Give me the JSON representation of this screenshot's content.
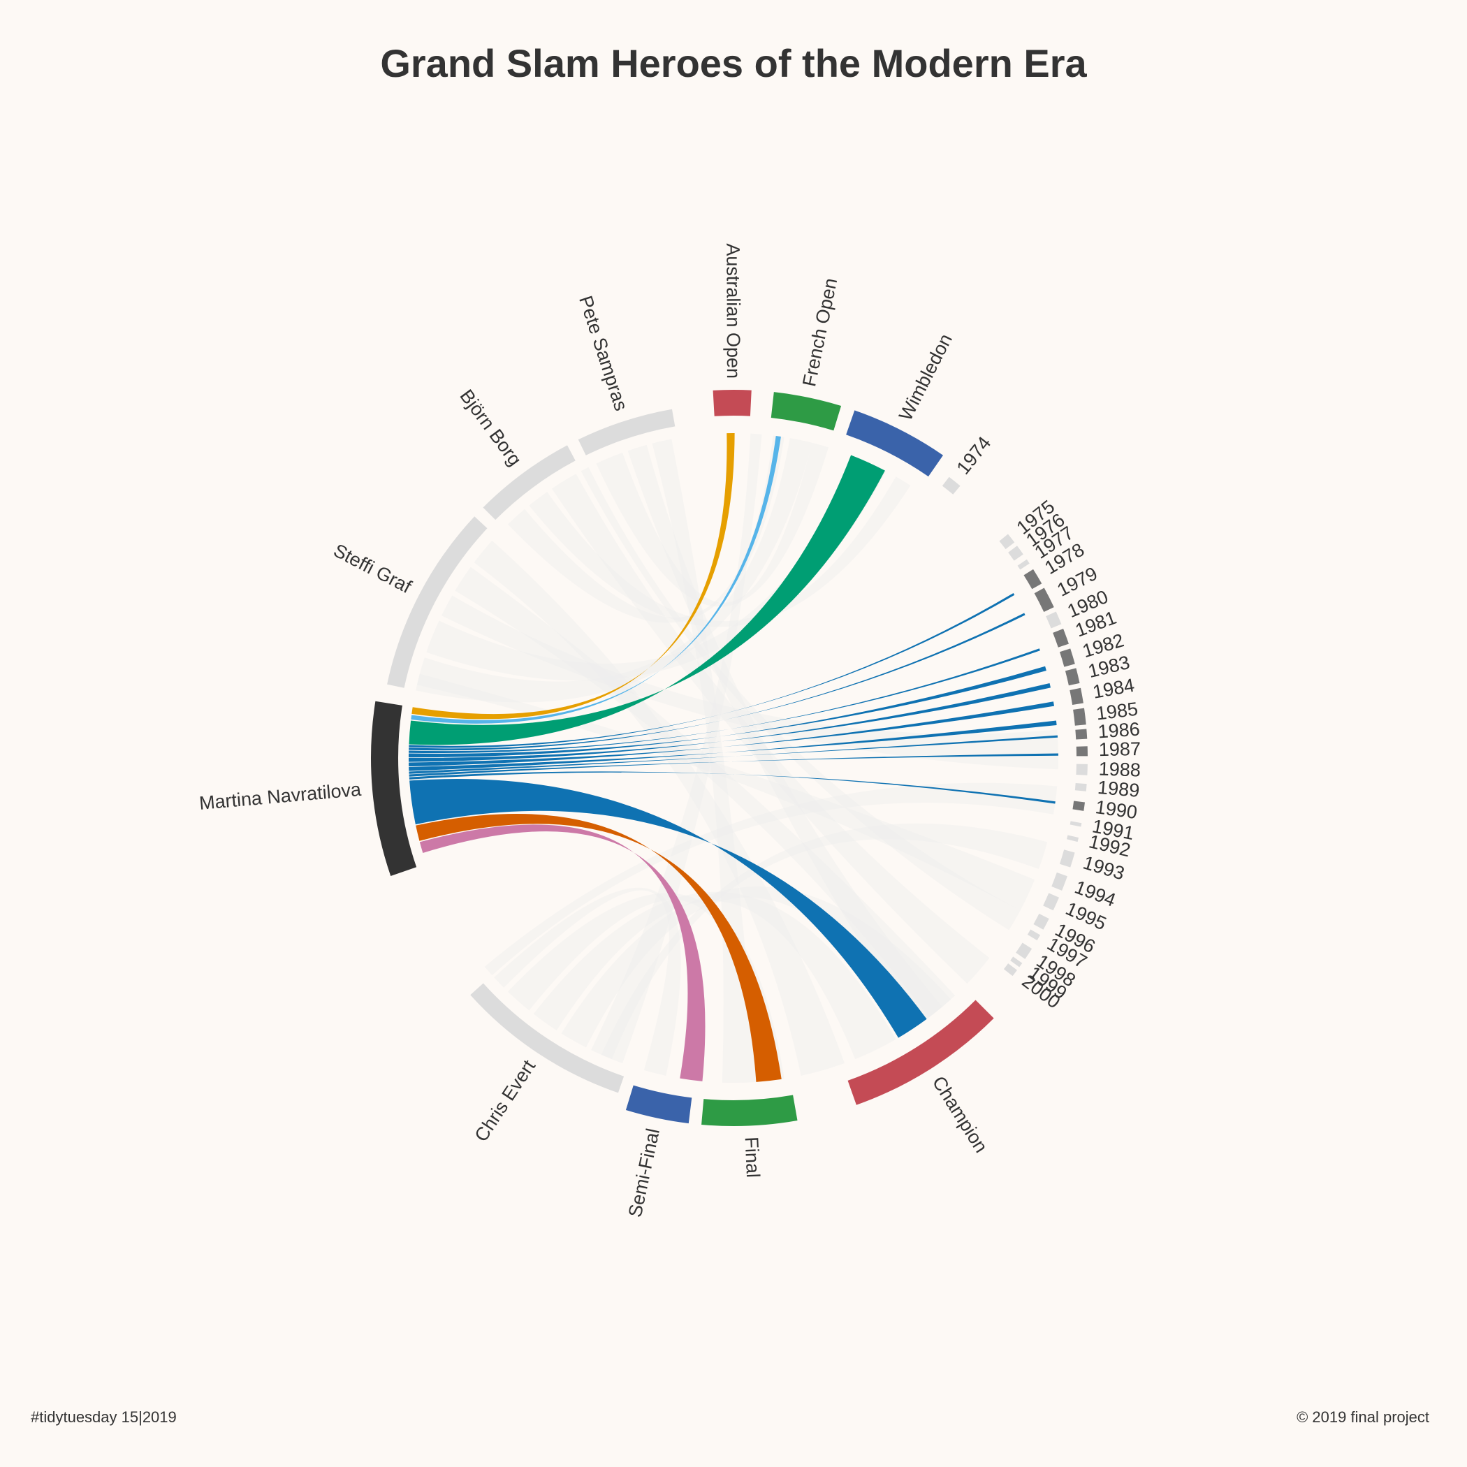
{
  "title": "Grand Slam Heroes of the Modern Era",
  "caption_left": "#tidytuesday 15|2019",
  "caption_right": "© 2019 final project",
  "colors": {
    "background": "#fdf9f5",
    "segment_inactive": "#dcdcdc",
    "ribbon_inactive": "#eeeeee",
    "year_active": "#777777",
    "navratilova": "#333333"
  },
  "chart_data": {
    "type": "chord",
    "highlight": "Martina Navratilova",
    "segments": [
      {
        "id": "Australian Open",
        "label": "Australian Open",
        "group": "tournament",
        "color": "#c44b55"
      },
      {
        "id": "French Open",
        "label": "French Open",
        "group": "tournament",
        "color": "#2e9b45"
      },
      {
        "id": "Wimbledon",
        "label": "Wimbledon",
        "group": "tournament",
        "color": "#3a63aa"
      },
      {
        "id": "1974",
        "label": "1974",
        "group": "year"
      },
      {
        "id": "1975",
        "label": "1975",
        "group": "year"
      },
      {
        "id": "1976",
        "label": "1976",
        "group": "year"
      },
      {
        "id": "1977",
        "label": "1977",
        "group": "year"
      },
      {
        "id": "1978",
        "label": "1978",
        "group": "year"
      },
      {
        "id": "1979",
        "label": "1979",
        "group": "year"
      },
      {
        "id": "1980",
        "label": "1980",
        "group": "year"
      },
      {
        "id": "1981",
        "label": "1981",
        "group": "year"
      },
      {
        "id": "1982",
        "label": "1982",
        "group": "year"
      },
      {
        "id": "1983",
        "label": "1983",
        "group": "year"
      },
      {
        "id": "1984",
        "label": "1984",
        "group": "year"
      },
      {
        "id": "1985",
        "label": "1985",
        "group": "year"
      },
      {
        "id": "1986",
        "label": "1986",
        "group": "year"
      },
      {
        "id": "1987",
        "label": "1987",
        "group": "year"
      },
      {
        "id": "1988",
        "label": "1988",
        "group": "year"
      },
      {
        "id": "1989",
        "label": "1989",
        "group": "year"
      },
      {
        "id": "1990",
        "label": "1990",
        "group": "year"
      },
      {
        "id": "1991",
        "label": "1991",
        "group": "year"
      },
      {
        "id": "1992",
        "label": "1992",
        "group": "year"
      },
      {
        "id": "1993",
        "label": "1993",
        "group": "year"
      },
      {
        "id": "1994",
        "label": "1994",
        "group": "year"
      },
      {
        "id": "1995",
        "label": "1995",
        "group": "year"
      },
      {
        "id": "1996",
        "label": "1996",
        "group": "year"
      },
      {
        "id": "1997",
        "label": "1997",
        "group": "year"
      },
      {
        "id": "1998",
        "label": "1998",
        "group": "year"
      },
      {
        "id": "1999",
        "label": "1999",
        "group": "year"
      },
      {
        "id": "2000",
        "label": "2000",
        "group": "year"
      },
      {
        "id": "Champion",
        "label": "Champion",
        "group": "outcome",
        "color": "#c44b55"
      },
      {
        "id": "Final",
        "label": "Final",
        "group": "outcome",
        "color": "#2e9b45"
      },
      {
        "id": "Semi-Final",
        "label": "Semi-Final",
        "group": "outcome",
        "color": "#3a63aa"
      },
      {
        "id": "Chris Evert",
        "label": "Chris Evert",
        "group": "player"
      },
      {
        "id": "Martina Navratilova",
        "label": "Martina Navratilova",
        "group": "player"
      },
      {
        "id": "Steffi Graf",
        "label": "Steffi Graf",
        "group": "player"
      },
      {
        "id": "Björn Borg",
        "label": "Björn Borg",
        "group": "player"
      },
      {
        "id": "Pete Sampras",
        "label": "Pete Sampras",
        "group": "player"
      }
    ],
    "highlighted_flows": [
      {
        "target": "Australian Open",
        "value": 3,
        "color": "#e69f00"
      },
      {
        "target": "French Open",
        "value": 2,
        "color": "#56b4e9"
      },
      {
        "target": "Wimbledon",
        "value": 9,
        "color": "#009e73"
      },
      {
        "target": "1978",
        "value": 1,
        "color": "#0f72b2"
      },
      {
        "target": "1979",
        "value": 1,
        "color": "#0f72b2"
      },
      {
        "target": "1981",
        "value": 1,
        "color": "#0f72b2"
      },
      {
        "target": "1982",
        "value": 2,
        "color": "#0f72b2"
      },
      {
        "target": "1983",
        "value": 2,
        "color": "#0f72b2"
      },
      {
        "target": "1984",
        "value": 2,
        "color": "#0f72b2"
      },
      {
        "target": "1985",
        "value": 2,
        "color": "#0f72b2"
      },
      {
        "target": "1986",
        "value": 1,
        "color": "#0f72b2"
      },
      {
        "target": "1987",
        "value": 1,
        "color": "#0f72b2"
      },
      {
        "target": "1990",
        "value": 1,
        "color": "#0f72b2"
      },
      {
        "target": "Champion",
        "value": 14,
        "color": "#0f72b2"
      },
      {
        "target": "Final",
        "value": 5,
        "color": "#d55e00"
      },
      {
        "target": "Semi-Final",
        "value": 4,
        "color": "#cc79a7"
      }
    ]
  }
}
